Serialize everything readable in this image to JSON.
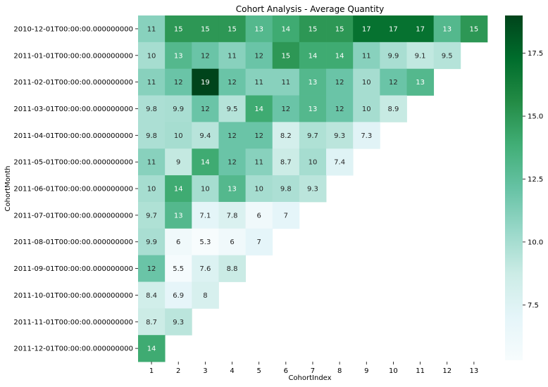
{
  "chart_data": {
    "type": "heatmap",
    "title": "Cohort Analysis - Average Quantity",
    "xlabel": "CohortIndex",
    "ylabel": "CohortMonth",
    "x": [
      "1",
      "2",
      "3",
      "4",
      "5",
      "6",
      "7",
      "8",
      "9",
      "10",
      "11",
      "12",
      "13"
    ],
    "y": [
      "2010-12-01T00:00:00.000000000",
      "2011-01-01T00:00:00.000000000",
      "2011-02-01T00:00:00.000000000",
      "2011-03-01T00:00:00.000000000",
      "2011-04-01T00:00:00.000000000",
      "2011-05-01T00:00:00.000000000",
      "2011-06-01T00:00:00.000000000",
      "2011-07-01T00:00:00.000000000",
      "2011-08-01T00:00:00.000000000",
      "2011-09-01T00:00:00.000000000",
      "2011-10-01T00:00:00.000000000",
      "2011-11-01T00:00:00.000000000",
      "2011-12-01T00:00:00.000000000"
    ],
    "values": [
      [
        11,
        15,
        15,
        15,
        13,
        14,
        15,
        15,
        17,
        17,
        17,
        13,
        15
      ],
      [
        10,
        13,
        12,
        11,
        12,
        15,
        14,
        14,
        11,
        9.9,
        9.1,
        9.5,
        null
      ],
      [
        11,
        12,
        19,
        12,
        11,
        11,
        13,
        12,
        10,
        12,
        13,
        null,
        null
      ],
      [
        9.8,
        9.9,
        12,
        9.5,
        14,
        12,
        13,
        12,
        10,
        8.9,
        null,
        null,
        null
      ],
      [
        9.8,
        10,
        9.4,
        12,
        12,
        8.2,
        9.7,
        9.3,
        7.3,
        null,
        null,
        null,
        null
      ],
      [
        11,
        9,
        14,
        12,
        11,
        8.7,
        10,
        7.4,
        null,
        null,
        null,
        null,
        null
      ],
      [
        10,
        14,
        10,
        13,
        10,
        9.8,
        9.3,
        null,
        null,
        null,
        null,
        null,
        null
      ],
      [
        9.7,
        13,
        7.1,
        7.8,
        6,
        7,
        null,
        null,
        null,
        null,
        null,
        null,
        null
      ],
      [
        9.9,
        6,
        5.3,
        6,
        7,
        null,
        null,
        null,
        null,
        null,
        null,
        null,
        null
      ],
      [
        12,
        5.5,
        7.6,
        8.8,
        null,
        null,
        null,
        null,
        null,
        null,
        null,
        null,
        null
      ],
      [
        8.4,
        6.9,
        8,
        null,
        null,
        null,
        null,
        null,
        null,
        null,
        null,
        null,
        null
      ],
      [
        8.7,
        9.3,
        null,
        null,
        null,
        null,
        null,
        null,
        null,
        null,
        null,
        null,
        null
      ],
      [
        14,
        null,
        null,
        null,
        null,
        null,
        null,
        null,
        null,
        null,
        null,
        null,
        null
      ]
    ],
    "colorscale": "BuGn",
    "vmin": 5.3,
    "vmax": 19,
    "colorbar_ticks": [
      "7.5",
      "10.0",
      "12.5",
      "15.0",
      "17.5"
    ]
  }
}
